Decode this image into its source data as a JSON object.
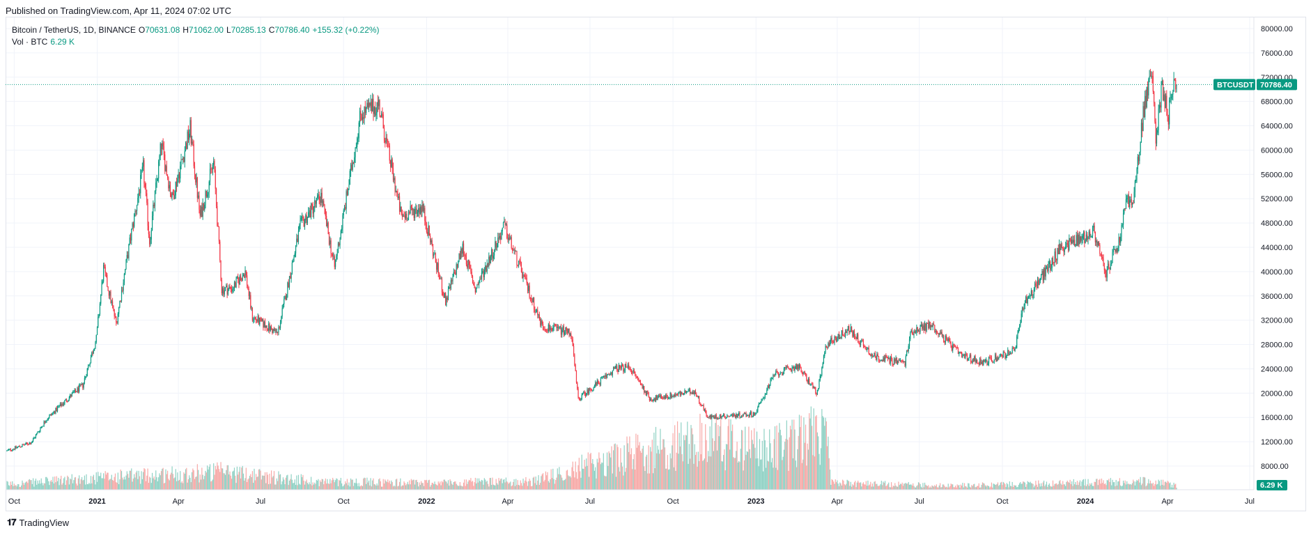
{
  "header": {
    "published": "Published on TradingView.com, Apr 11, 2024 07:02 UTC"
  },
  "legend": {
    "symbol": "Bitcoin / TetherUS, 1D, BINANCE",
    "o_label": "O",
    "o_value": "70631.08",
    "h_label": "H",
    "h_value": "71062.00",
    "l_label": "L",
    "l_value": "70285.13",
    "c_label": "C",
    "c_value": "70786.40",
    "change": "+155.32 (+0.22%)",
    "vol_label": "Vol · BTC",
    "vol_value": "6.29 K"
  },
  "badges": {
    "symbol": "BTCUSDT",
    "price": "70786.40",
    "volume": "6.29 K"
  },
  "footer": {
    "brand": "TradingView"
  },
  "colors": {
    "up": "#089981",
    "down": "#f23645",
    "vol_up": "#8fd1c4",
    "vol_down": "#f7a9a7",
    "grid": "#f0f3fa"
  },
  "chart_data": {
    "type": "candlestick",
    "title": "Bitcoin / TetherUS, 1D, BINANCE",
    "ylim": [
      8000,
      80000
    ],
    "y_ticks": [
      "80000.00",
      "76000.00",
      "72000.00",
      "68000.00",
      "64000.00",
      "60000.00",
      "56000.00",
      "52000.00",
      "48000.00",
      "44000.00",
      "40000.00",
      "36000.00",
      "32000.00",
      "28000.00",
      "24000.00",
      "20000.00",
      "16000.00",
      "12000.00",
      "8000.00"
    ],
    "x_ticks": [
      {
        "label": "Oct",
        "date": "2020-10-01",
        "bold": false
      },
      {
        "label": "2021",
        "date": "2021-01-01",
        "bold": true
      },
      {
        "label": "Apr",
        "date": "2021-04-01",
        "bold": false
      },
      {
        "label": "Jul",
        "date": "2021-07-01",
        "bold": false
      },
      {
        "label": "Oct",
        "date": "2021-10-01",
        "bold": false
      },
      {
        "label": "2022",
        "date": "2022-01-01",
        "bold": true
      },
      {
        "label": "Apr",
        "date": "2022-04-01",
        "bold": false
      },
      {
        "label": "Jul",
        "date": "2022-07-01",
        "bold": false
      },
      {
        "label": "Oct",
        "date": "2022-10-01",
        "bold": false
      },
      {
        "label": "2023",
        "date": "2023-01-01",
        "bold": true
      },
      {
        "label": "Apr",
        "date": "2023-04-01",
        "bold": false
      },
      {
        "label": "Jul",
        "date": "2023-07-01",
        "bold": false
      },
      {
        "label": "Oct",
        "date": "2023-10-01",
        "bold": false
      },
      {
        "label": "2024",
        "date": "2024-01-01",
        "bold": true
      },
      {
        "label": "Apr",
        "date": "2024-04-01",
        "bold": false
      },
      {
        "label": "Jul",
        "date": "2024-07-01",
        "bold": false
      }
    ],
    "last_price": 70786.4,
    "anchors": [
      [
        "2020-09-23",
        10500
      ],
      [
        "2020-10-20",
        11900
      ],
      [
        "2020-11-05",
        15600
      ],
      [
        "2020-11-30",
        19200
      ],
      [
        "2020-12-16",
        21300
      ],
      [
        "2020-12-31",
        29000
      ],
      [
        "2021-01-08",
        40500
      ],
      [
        "2021-01-22",
        31500
      ],
      [
        "2021-02-08",
        46500
      ],
      [
        "2021-02-21",
        57000
      ],
      [
        "2021-02-28",
        45000
      ],
      [
        "2021-03-13",
        61000
      ],
      [
        "2021-03-25",
        52000
      ],
      [
        "2021-04-14",
        63500
      ],
      [
        "2021-04-25",
        49000
      ],
      [
        "2021-05-10",
        58000
      ],
      [
        "2021-05-19",
        37000
      ],
      [
        "2021-05-31",
        37300
      ],
      [
        "2021-06-14",
        40000
      ],
      [
        "2021-06-22",
        32500
      ],
      [
        "2021-07-20",
        29800
      ],
      [
        "2021-08-14",
        47500
      ],
      [
        "2021-09-06",
        52500
      ],
      [
        "2021-09-21",
        40700
      ],
      [
        "2021-10-20",
        66000
      ],
      [
        "2021-11-09",
        67500
      ],
      [
        "2021-12-04",
        49000
      ],
      [
        "2021-12-27",
        50700
      ],
      [
        "2022-01-22",
        35000
      ],
      [
        "2022-02-10",
        44000
      ],
      [
        "2022-02-24",
        37000
      ],
      [
        "2022-03-28",
        47500
      ],
      [
        "2022-05-09",
        31000
      ],
      [
        "2022-06-10",
        30000
      ],
      [
        "2022-06-18",
        19000
      ],
      [
        "2022-07-29",
        24000
      ],
      [
        "2022-08-14",
        24300
      ],
      [
        "2022-09-06",
        19000
      ],
      [
        "2022-10-25",
        20300
      ],
      [
        "2022-11-09",
        16000
      ],
      [
        "2022-12-31",
        16600
      ],
      [
        "2023-01-21",
        23000
      ],
      [
        "2023-02-16",
        24500
      ],
      [
        "2023-03-10",
        20000
      ],
      [
        "2023-03-20",
        28000
      ],
      [
        "2023-04-14",
        30500
      ],
      [
        "2023-05-12",
        26000
      ],
      [
        "2023-06-15",
        25000
      ],
      [
        "2023-06-22",
        30200
      ],
      [
        "2023-07-14",
        31300
      ],
      [
        "2023-08-17",
        26000
      ],
      [
        "2023-09-11",
        25100
      ],
      [
        "2023-10-15",
        27000
      ],
      [
        "2023-10-24",
        34500
      ],
      [
        "2023-12-05",
        44000
      ],
      [
        "2024-01-11",
        46500
      ],
      [
        "2024-01-23",
        39500
      ],
      [
        "2024-02-08",
        45000
      ],
      [
        "2024-02-15",
        52000
      ],
      [
        "2024-02-23",
        51000
      ],
      [
        "2024-03-05",
        66000
      ],
      [
        "2024-03-14",
        73000
      ],
      [
        "2024-03-19",
        62500
      ],
      [
        "2024-03-26",
        70500
      ],
      [
        "2024-04-02",
        65800
      ],
      [
        "2024-04-08",
        71600
      ],
      [
        "2024-04-11",
        70786
      ]
    ],
    "volume_anchors": [
      [
        "2020-09-23",
        0.4
      ],
      [
        "2021-01-15",
        0.9
      ],
      [
        "2021-05-20",
        1.3
      ],
      [
        "2021-09-01",
        0.6
      ],
      [
        "2022-01-01",
        0.5
      ],
      [
        "2022-05-01",
        0.6
      ],
      [
        "2022-06-20",
        1.6
      ],
      [
        "2022-09-01",
        2.8
      ],
      [
        "2022-11-10",
        3.6
      ],
      [
        "2023-01-15",
        2.8
      ],
      [
        "2023-03-20",
        4.2
      ],
      [
        "2023-03-25",
        0.5
      ],
      [
        "2023-08-01",
        0.3
      ],
      [
        "2024-01-01",
        0.5
      ],
      [
        "2024-03-15",
        0.6
      ],
      [
        "2024-04-11",
        0.3
      ]
    ]
  }
}
